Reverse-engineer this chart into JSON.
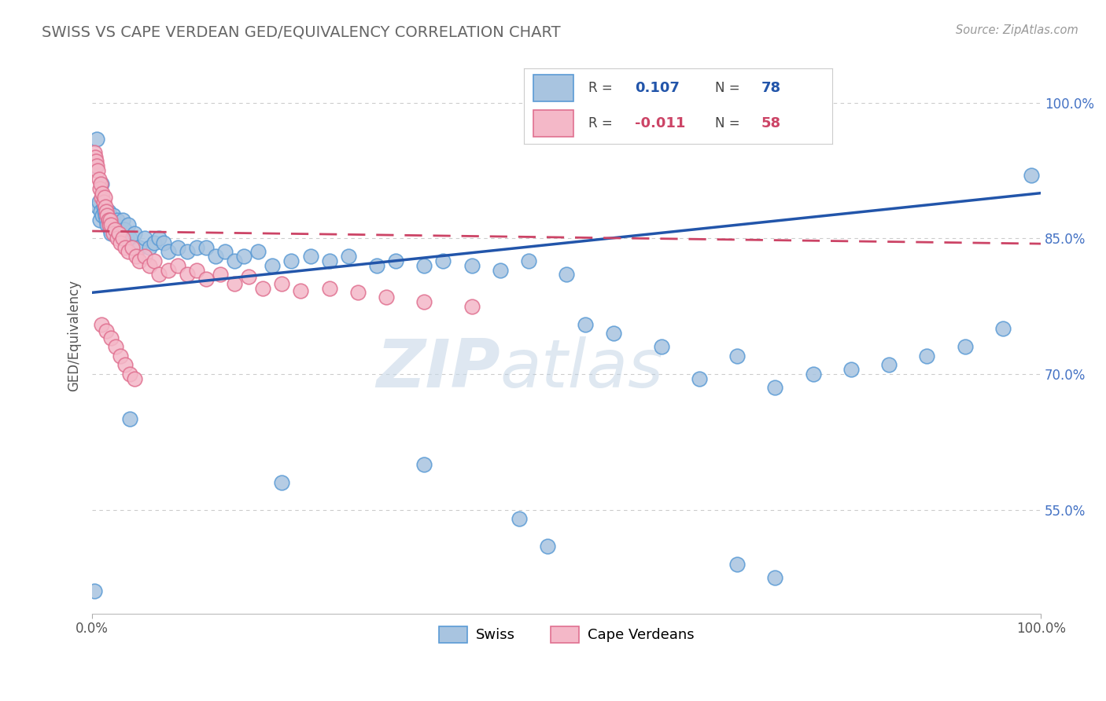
{
  "title": "SWISS VS CAPE VERDEAN GED/EQUIVALENCY CORRELATION CHART",
  "source_text": "Source: ZipAtlas.com",
  "ylabel": "GED/Equivalency",
  "watermark_zip": "ZIP",
  "watermark_atlas": "atlas",
  "xmin": 0.0,
  "xmax": 1.0,
  "ymin": 0.435,
  "ymax": 1.05,
  "yticks": [
    0.55,
    0.7,
    0.85,
    1.0
  ],
  "ytick_labels": [
    "55.0%",
    "70.0%",
    "85.0%",
    "100.0%"
  ],
  "xtick_labels": [
    "0.0%",
    "100.0%"
  ],
  "xticks": [
    0.0,
    1.0
  ],
  "swiss_R": 0.107,
  "swiss_N": 78,
  "cape_R": -0.011,
  "cape_N": 58,
  "swiss_color": "#a8c4e0",
  "swiss_edge": "#5b9bd5",
  "cape_color": "#f4b8c8",
  "cape_edge": "#e07090",
  "trend_swiss_color": "#2255aa",
  "trend_cape_color": "#cc4466",
  "legend_swiss_label": "Swiss",
  "legend_cape_label": "Cape Verdeans",
  "swiss_x": [
    0.003,
    0.005,
    0.006,
    0.007,
    0.008,
    0.009,
    0.01,
    0.011,
    0.012,
    0.013,
    0.014,
    0.015,
    0.016,
    0.017,
    0.018,
    0.019,
    0.02,
    0.022,
    0.024,
    0.026,
    0.028,
    0.03,
    0.032,
    0.034,
    0.036,
    0.038,
    0.04,
    0.045,
    0.05,
    0.055,
    0.06,
    0.065,
    0.07,
    0.075,
    0.08,
    0.09,
    0.1,
    0.11,
    0.12,
    0.13,
    0.14,
    0.15,
    0.16,
    0.175,
    0.19,
    0.21,
    0.23,
    0.25,
    0.27,
    0.3,
    0.32,
    0.35,
    0.37,
    0.4,
    0.43,
    0.46,
    0.5,
    0.52,
    0.55,
    0.6,
    0.64,
    0.68,
    0.72,
    0.76,
    0.8,
    0.84,
    0.88,
    0.92,
    0.96,
    0.99,
    0.002,
    0.04,
    0.2,
    0.35,
    0.45,
    0.48,
    0.68,
    0.72
  ],
  "swiss_y": [
    0.93,
    0.96,
    0.885,
    0.89,
    0.87,
    0.88,
    0.91,
    0.875,
    0.885,
    0.88,
    0.875,
    0.87,
    0.865,
    0.88,
    0.87,
    0.86,
    0.855,
    0.875,
    0.865,
    0.87,
    0.86,
    0.855,
    0.87,
    0.86,
    0.85,
    0.865,
    0.85,
    0.855,
    0.84,
    0.85,
    0.84,
    0.845,
    0.85,
    0.845,
    0.835,
    0.84,
    0.835,
    0.84,
    0.84,
    0.83,
    0.835,
    0.825,
    0.83,
    0.835,
    0.82,
    0.825,
    0.83,
    0.825,
    0.83,
    0.82,
    0.825,
    0.82,
    0.825,
    0.82,
    0.815,
    0.825,
    0.81,
    0.755,
    0.745,
    0.73,
    0.695,
    0.72,
    0.685,
    0.7,
    0.705,
    0.71,
    0.72,
    0.73,
    0.75,
    0.92,
    0.46,
    0.65,
    0.58,
    0.6,
    0.54,
    0.51,
    0.49,
    0.475
  ],
  "cape_x": [
    0.002,
    0.003,
    0.004,
    0.005,
    0.006,
    0.007,
    0.008,
    0.009,
    0.01,
    0.011,
    0.012,
    0.013,
    0.014,
    0.015,
    0.016,
    0.017,
    0.018,
    0.019,
    0.02,
    0.022,
    0.024,
    0.026,
    0.028,
    0.03,
    0.032,
    0.035,
    0.038,
    0.042,
    0.046,
    0.05,
    0.055,
    0.06,
    0.065,
    0.07,
    0.08,
    0.09,
    0.1,
    0.11,
    0.12,
    0.135,
    0.15,
    0.165,
    0.18,
    0.2,
    0.22,
    0.25,
    0.28,
    0.31,
    0.35,
    0.4,
    0.01,
    0.015,
    0.02,
    0.025,
    0.03,
    0.035,
    0.04,
    0.045
  ],
  "cape_y": [
    0.945,
    0.94,
    0.935,
    0.93,
    0.925,
    0.915,
    0.905,
    0.91,
    0.895,
    0.9,
    0.89,
    0.895,
    0.885,
    0.88,
    0.875,
    0.87,
    0.865,
    0.87,
    0.865,
    0.855,
    0.86,
    0.85,
    0.855,
    0.845,
    0.85,
    0.84,
    0.835,
    0.84,
    0.83,
    0.825,
    0.83,
    0.82,
    0.825,
    0.81,
    0.815,
    0.82,
    0.81,
    0.815,
    0.805,
    0.81,
    0.8,
    0.808,
    0.795,
    0.8,
    0.792,
    0.795,
    0.79,
    0.785,
    0.78,
    0.775,
    0.755,
    0.748,
    0.74,
    0.73,
    0.72,
    0.71,
    0.7,
    0.695
  ]
}
